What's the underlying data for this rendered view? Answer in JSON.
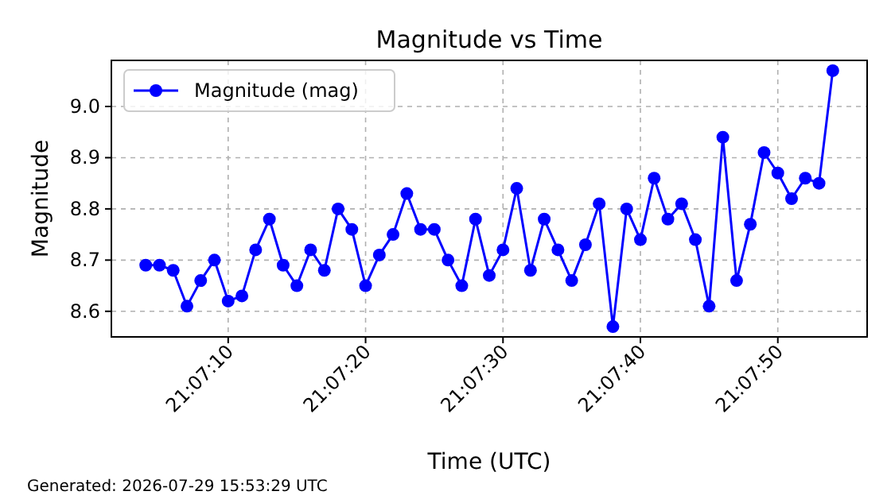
{
  "chart_data": {
    "type": "line",
    "title": "Magnitude vs Time",
    "xlabel": "Time (UTC)",
    "ylabel": "Magnitude",
    "x": [
      "2026-07-29T21:07:04",
      "2026-07-29T21:07:05",
      "2026-07-29T21:07:06",
      "2026-07-29T21:07:07",
      "2026-07-29T21:07:08",
      "2026-07-29T21:07:09",
      "2026-07-29T21:07:10",
      "2026-07-29T21:07:11",
      "2026-07-29T21:07:12",
      "2026-07-29T21:07:13",
      "2026-07-29T21:07:14",
      "2026-07-29T21:07:15",
      "2026-07-29T21:07:16",
      "2026-07-29T21:07:17",
      "2026-07-29T21:07:18",
      "2026-07-29T21:07:19",
      "2026-07-29T21:07:20",
      "2026-07-29T21:07:21",
      "2026-07-29T21:07:22",
      "2026-07-29T21:07:23",
      "2026-07-29T21:07:24",
      "2026-07-29T21:07:25",
      "2026-07-29T21:07:26",
      "2026-07-29T21:07:27",
      "2026-07-29T21:07:28",
      "2026-07-29T21:07:29",
      "2026-07-29T21:07:30",
      "2026-07-29T21:07:31",
      "2026-07-29T21:07:32",
      "2026-07-29T21:07:33",
      "2026-07-29T21:07:34",
      "2026-07-29T21:07:35",
      "2026-07-29T21:07:36",
      "2026-07-29T21:07:37",
      "2026-07-29T21:07:38",
      "2026-07-29T21:07:39",
      "2026-07-29T21:07:40",
      "2026-07-29T21:07:41",
      "2026-07-29T21:07:42",
      "2026-07-29T21:07:43",
      "2026-07-29T21:07:44",
      "2026-07-29T21:07:45",
      "2026-07-29T21:07:46",
      "2026-07-29T21:07:47",
      "2026-07-29T21:07:48",
      "2026-07-29T21:07:49",
      "2026-07-29T21:07:50",
      "2026-07-29T21:07:51",
      "2026-07-29T21:07:52",
      "2026-07-29T21:07:53",
      "2026-07-29T21:07:54"
    ],
    "series": [
      {
        "name": "Magnitude (mag)",
        "color": "#0000ff",
        "values": [
          8.69,
          8.69,
          8.68,
          8.61,
          8.66,
          8.7,
          8.62,
          8.63,
          8.72,
          8.78,
          8.69,
          8.65,
          8.72,
          8.68,
          8.8,
          8.76,
          8.65,
          8.71,
          8.75,
          8.83,
          8.76,
          8.76,
          8.7,
          8.65,
          8.78,
          8.67,
          8.72,
          8.84,
          8.68,
          8.78,
          8.72,
          8.66,
          8.73,
          8.81,
          8.57,
          8.8,
          8.74,
          8.86,
          8.78,
          8.81,
          8.74,
          8.61,
          8.94,
          8.66,
          8.77,
          8.91,
          8.87,
          8.82,
          8.86,
          8.85,
          9.07
        ]
      }
    ],
    "xlim": [
      "2026-07-29T21:07:01.5",
      "2026-07-29T21:07:56.5"
    ],
    "xticks": [
      {
        "value": "2026-07-29T21:07:10",
        "label": "21:07:10"
      },
      {
        "value": "2026-07-29T21:07:20",
        "label": "21:07:20"
      },
      {
        "value": "2026-07-29T21:07:30",
        "label": "21:07:30"
      },
      {
        "value": "2026-07-29T21:07:40",
        "label": "21:07:40"
      },
      {
        "value": "2026-07-29T21:07:50",
        "label": "21:07:50"
      }
    ],
    "ylim": [
      8.55,
      9.09
    ],
    "yticks": [
      8.6,
      8.7,
      8.8,
      8.9,
      {
        "value": 9.0,
        "label": "9.0"
      }
    ],
    "grid": true,
    "legend": "top left",
    "marker": "circle",
    "line_style": "solid",
    "annotations": [
      "Generated: 2026-07-29 15:53:29 UTC"
    ]
  }
}
